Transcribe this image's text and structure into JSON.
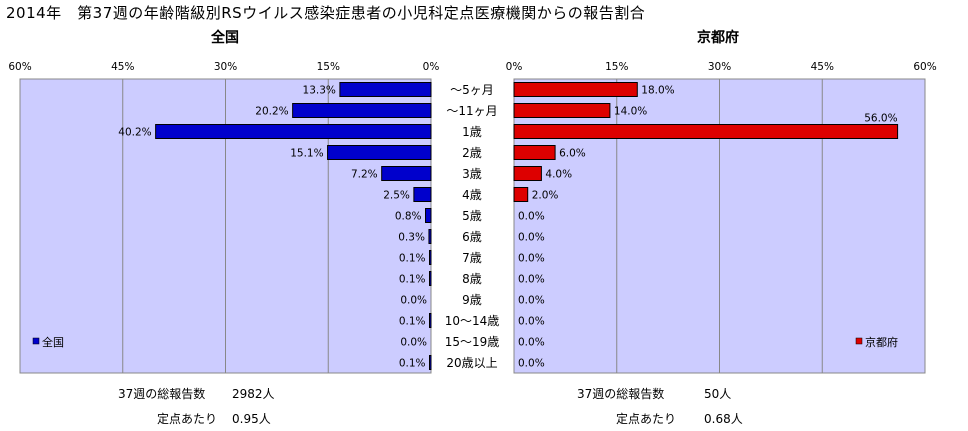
{
  "title": "2014年　第37週の年齢階級別RSウイルス感染症患者の小児科定点医療機関からの報告割合",
  "age_groups": [
    "～5ヶ月",
    "～11ヶ月",
    "1歳",
    "2歳",
    "3歳",
    "4歳",
    "5歳",
    "6歳",
    "7歳",
    "8歳",
    "9歳",
    "10～14歳",
    "15～19歳",
    "20歳以上"
  ],
  "colors": {
    "national": "#0000cc",
    "kyoto": "#dd0000",
    "plot_bg": "#ccccff"
  },
  "chart_data": [
    {
      "type": "bar",
      "orientation": "horizontal",
      "direction": "right-to-left",
      "title": "全国",
      "categories": [
        "～5ヶ月",
        "～11ヶ月",
        "1歳",
        "2歳",
        "3歳",
        "4歳",
        "5歳",
        "6歳",
        "7歳",
        "8歳",
        "9歳",
        "10～14歳",
        "15～19歳",
        "20歳以上"
      ],
      "series": [
        {
          "name": "全国",
          "values": [
            13.3,
            20.2,
            40.2,
            15.1,
            7.2,
            2.5,
            0.8,
            0.3,
            0.1,
            0.1,
            0.0,
            0.1,
            0.0,
            0.1
          ]
        }
      ],
      "data_labels": [
        "13.3%",
        "20.2%",
        "40.2%",
        "15.1%",
        "7.2%",
        "2.5%",
        "0.8%",
        "0.3%",
        "0.1%",
        "0.1%",
        "0.0%",
        "0.1%",
        "0.0%",
        "0.1%"
      ],
      "xlim": [
        0,
        60
      ],
      "ticks": [
        0,
        15,
        30,
        45,
        60
      ],
      "tick_labels": [
        "60%",
        "45%",
        "30%",
        "15%",
        "0%"
      ],
      "grid": true,
      "legend": "bottom-left"
    },
    {
      "type": "bar",
      "orientation": "horizontal",
      "direction": "left-to-right",
      "title": "京都府",
      "categories": [
        "～5ヶ月",
        "～11ヶ月",
        "1歳",
        "2歳",
        "3歳",
        "4歳",
        "5歳",
        "6歳",
        "7歳",
        "8歳",
        "9歳",
        "10～14歳",
        "15～19歳",
        "20歳以上"
      ],
      "series": [
        {
          "name": "京都府",
          "values": [
            18.0,
            14.0,
            56.0,
            6.0,
            4.0,
            2.0,
            0.0,
            0.0,
            0.0,
            0.0,
            0.0,
            0.0,
            0.0,
            0.0
          ]
        }
      ],
      "data_labels": [
        "18.0%",
        "14.0%",
        "56.0%",
        "6.0%",
        "4.0%",
        "2.0%",
        "0.0%",
        "0.0%",
        "0.0%",
        "0.0%",
        "0.0%",
        "0.0%",
        "0.0%",
        "0.0%"
      ],
      "xlim": [
        0,
        60
      ],
      "ticks": [
        0,
        15,
        30,
        45,
        60
      ],
      "tick_labels": [
        "0%",
        "15%",
        "30%",
        "45%",
        "60%"
      ],
      "grid": true,
      "legend": "bottom-right"
    }
  ],
  "footer": {
    "national": {
      "total_label": "37週の総報告数",
      "total_value": "2982人",
      "per_label": "定点あたり",
      "per_value": "0.95人"
    },
    "kyoto": {
      "total_label": "37週の総報告数",
      "total_value": "50人",
      "per_label": "定点あたり",
      "per_value": "0.68人"
    }
  }
}
